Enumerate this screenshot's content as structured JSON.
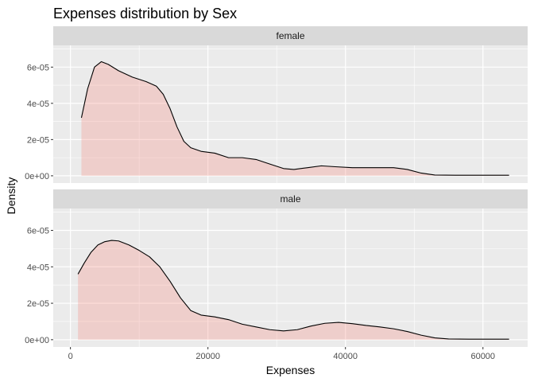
{
  "chart_data": {
    "type": "area",
    "title": "Expenses distribution by Sex",
    "xlabel": "Expenses",
    "ylabel": "Density",
    "xlim": [
      -2500,
      66500
    ],
    "ylim": [
      -4e-06,
      7.2e-05
    ],
    "x_ticks": [
      0,
      20000,
      40000,
      60000
    ],
    "x_tick_labels": [
      "0",
      "20000",
      "40000",
      "60000"
    ],
    "y_ticks": [
      0,
      2e-05,
      4e-05,
      6e-05
    ],
    "y_tick_labels": [
      "0e+00",
      "2e-05",
      "4e-05",
      "6e-05"
    ],
    "grid": true,
    "legend": "none",
    "colors": {
      "fill": "#F8766D",
      "fill_opacity": 0.25,
      "line": "#000000",
      "panel_bg": "#EBEBEB",
      "strip_bg": "#D9D9D9",
      "grid": "#FFFFFF"
    },
    "facets": [
      {
        "label": "female",
        "points": [
          [
            1600,
            3.2e-05
          ],
          [
            2500,
            4.8e-05
          ],
          [
            3500,
            6e-05
          ],
          [
            4500,
            6.3e-05
          ],
          [
            5500,
            6.15e-05
          ],
          [
            7000,
            5.8e-05
          ],
          [
            9000,
            5.45e-05
          ],
          [
            11000,
            5.2e-05
          ],
          [
            12500,
            4.95e-05
          ],
          [
            13500,
            4.5e-05
          ],
          [
            14500,
            3.7e-05
          ],
          [
            15500,
            2.7e-05
          ],
          [
            16500,
            1.9e-05
          ],
          [
            17500,
            1.55e-05
          ],
          [
            19000,
            1.35e-05
          ],
          [
            21000,
            1.25e-05
          ],
          [
            23000,
            1e-05
          ],
          [
            25000,
            1e-05
          ],
          [
            27000,
            9e-06
          ],
          [
            29000,
            6.5e-06
          ],
          [
            31000,
            4e-06
          ],
          [
            32500,
            3.5e-06
          ],
          [
            34500,
            4.5e-06
          ],
          [
            36500,
            5.5e-06
          ],
          [
            38500,
            5e-06
          ],
          [
            41000,
            4.5e-06
          ],
          [
            44000,
            4.5e-06
          ],
          [
            47000,
            4.5e-06
          ],
          [
            49000,
            3.5e-06
          ],
          [
            51000,
            1.5e-06
          ],
          [
            53000,
            4e-07
          ],
          [
            56000,
            3e-07
          ],
          [
            60000,
            3e-07
          ],
          [
            63800,
            3e-07
          ]
        ]
      },
      {
        "label": "male",
        "points": [
          [
            1100,
            3.6e-05
          ],
          [
            2000,
            4.2e-05
          ],
          [
            3000,
            4.8e-05
          ],
          [
            4000,
            5.2e-05
          ],
          [
            5000,
            5.38e-05
          ],
          [
            6000,
            5.45e-05
          ],
          [
            7000,
            5.42e-05
          ],
          [
            8500,
            5.2e-05
          ],
          [
            10000,
            4.9e-05
          ],
          [
            11500,
            4.55e-05
          ],
          [
            13000,
            4e-05
          ],
          [
            14500,
            3.2e-05
          ],
          [
            16000,
            2.3e-05
          ],
          [
            17500,
            1.6e-05
          ],
          [
            19000,
            1.35e-05
          ],
          [
            21000,
            1.25e-05
          ],
          [
            23000,
            1.1e-05
          ],
          [
            25000,
            8.5e-06
          ],
          [
            27000,
            7e-06
          ],
          [
            29000,
            5.5e-06
          ],
          [
            31000,
            4.8e-06
          ],
          [
            33000,
            5.5e-06
          ],
          [
            35000,
            7.5e-06
          ],
          [
            37000,
            9e-06
          ],
          [
            39000,
            9.5e-06
          ],
          [
            41000,
            8.8e-06
          ],
          [
            43000,
            7.8e-06
          ],
          [
            45000,
            7e-06
          ],
          [
            47000,
            6e-06
          ],
          [
            49000,
            4.5e-06
          ],
          [
            51000,
            2.5e-06
          ],
          [
            53000,
            1e-06
          ],
          [
            55000,
            4e-07
          ],
          [
            58000,
            3e-07
          ],
          [
            63800,
            3e-07
          ]
        ]
      }
    ]
  }
}
